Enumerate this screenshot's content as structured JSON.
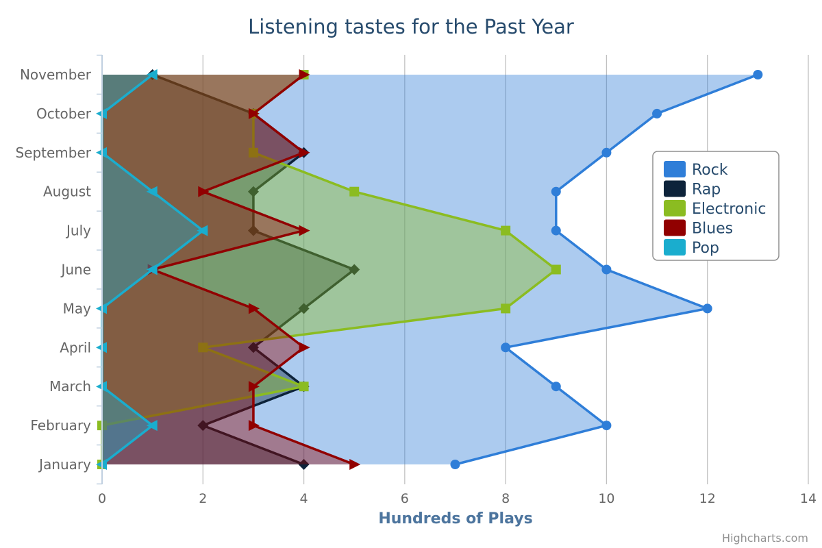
{
  "chart_data": {
    "type": "area",
    "title": "Listening tastes for the Past Year",
    "xlabel": "Hundreds of Plays",
    "ylabel": "",
    "categories": [
      "January",
      "February",
      "March",
      "April",
      "May",
      "June",
      "July",
      "August",
      "September",
      "October",
      "November"
    ],
    "xlim": [
      0,
      14
    ],
    "x_ticks": [
      "0",
      "2",
      "4",
      "6",
      "8",
      "10",
      "12",
      "14"
    ],
    "grid": true,
    "legend_position": "right",
    "series": [
      {
        "name": "Rock",
        "color": "#2f7ed8",
        "marker": "circle",
        "values": [
          7,
          10,
          9,
          8,
          12,
          10,
          9,
          9,
          10,
          11,
          13
        ]
      },
      {
        "name": "Rap",
        "color": "#0d233a",
        "marker": "diamond",
        "values": [
          4,
          2,
          4,
          3,
          4,
          5,
          3,
          3,
          4,
          3,
          1
        ]
      },
      {
        "name": "Electronic",
        "color": "#8bbc21",
        "marker": "square",
        "values": [
          0,
          0,
          4,
          2,
          8,
          9,
          8,
          5,
          3,
          3,
          4
        ]
      },
      {
        "name": "Blues",
        "color": "#910000",
        "marker": "triangle-right",
        "values": [
          5,
          3,
          3,
          4,
          3,
          1,
          4,
          2,
          4,
          3,
          4
        ]
      },
      {
        "name": "Pop",
        "color": "#1aadce",
        "marker": "triangle-left",
        "values": [
          0,
          1,
          0,
          0,
          0,
          1,
          2,
          1,
          0,
          0,
          1
        ]
      }
    ]
  },
  "credits": "Highcharts.com"
}
